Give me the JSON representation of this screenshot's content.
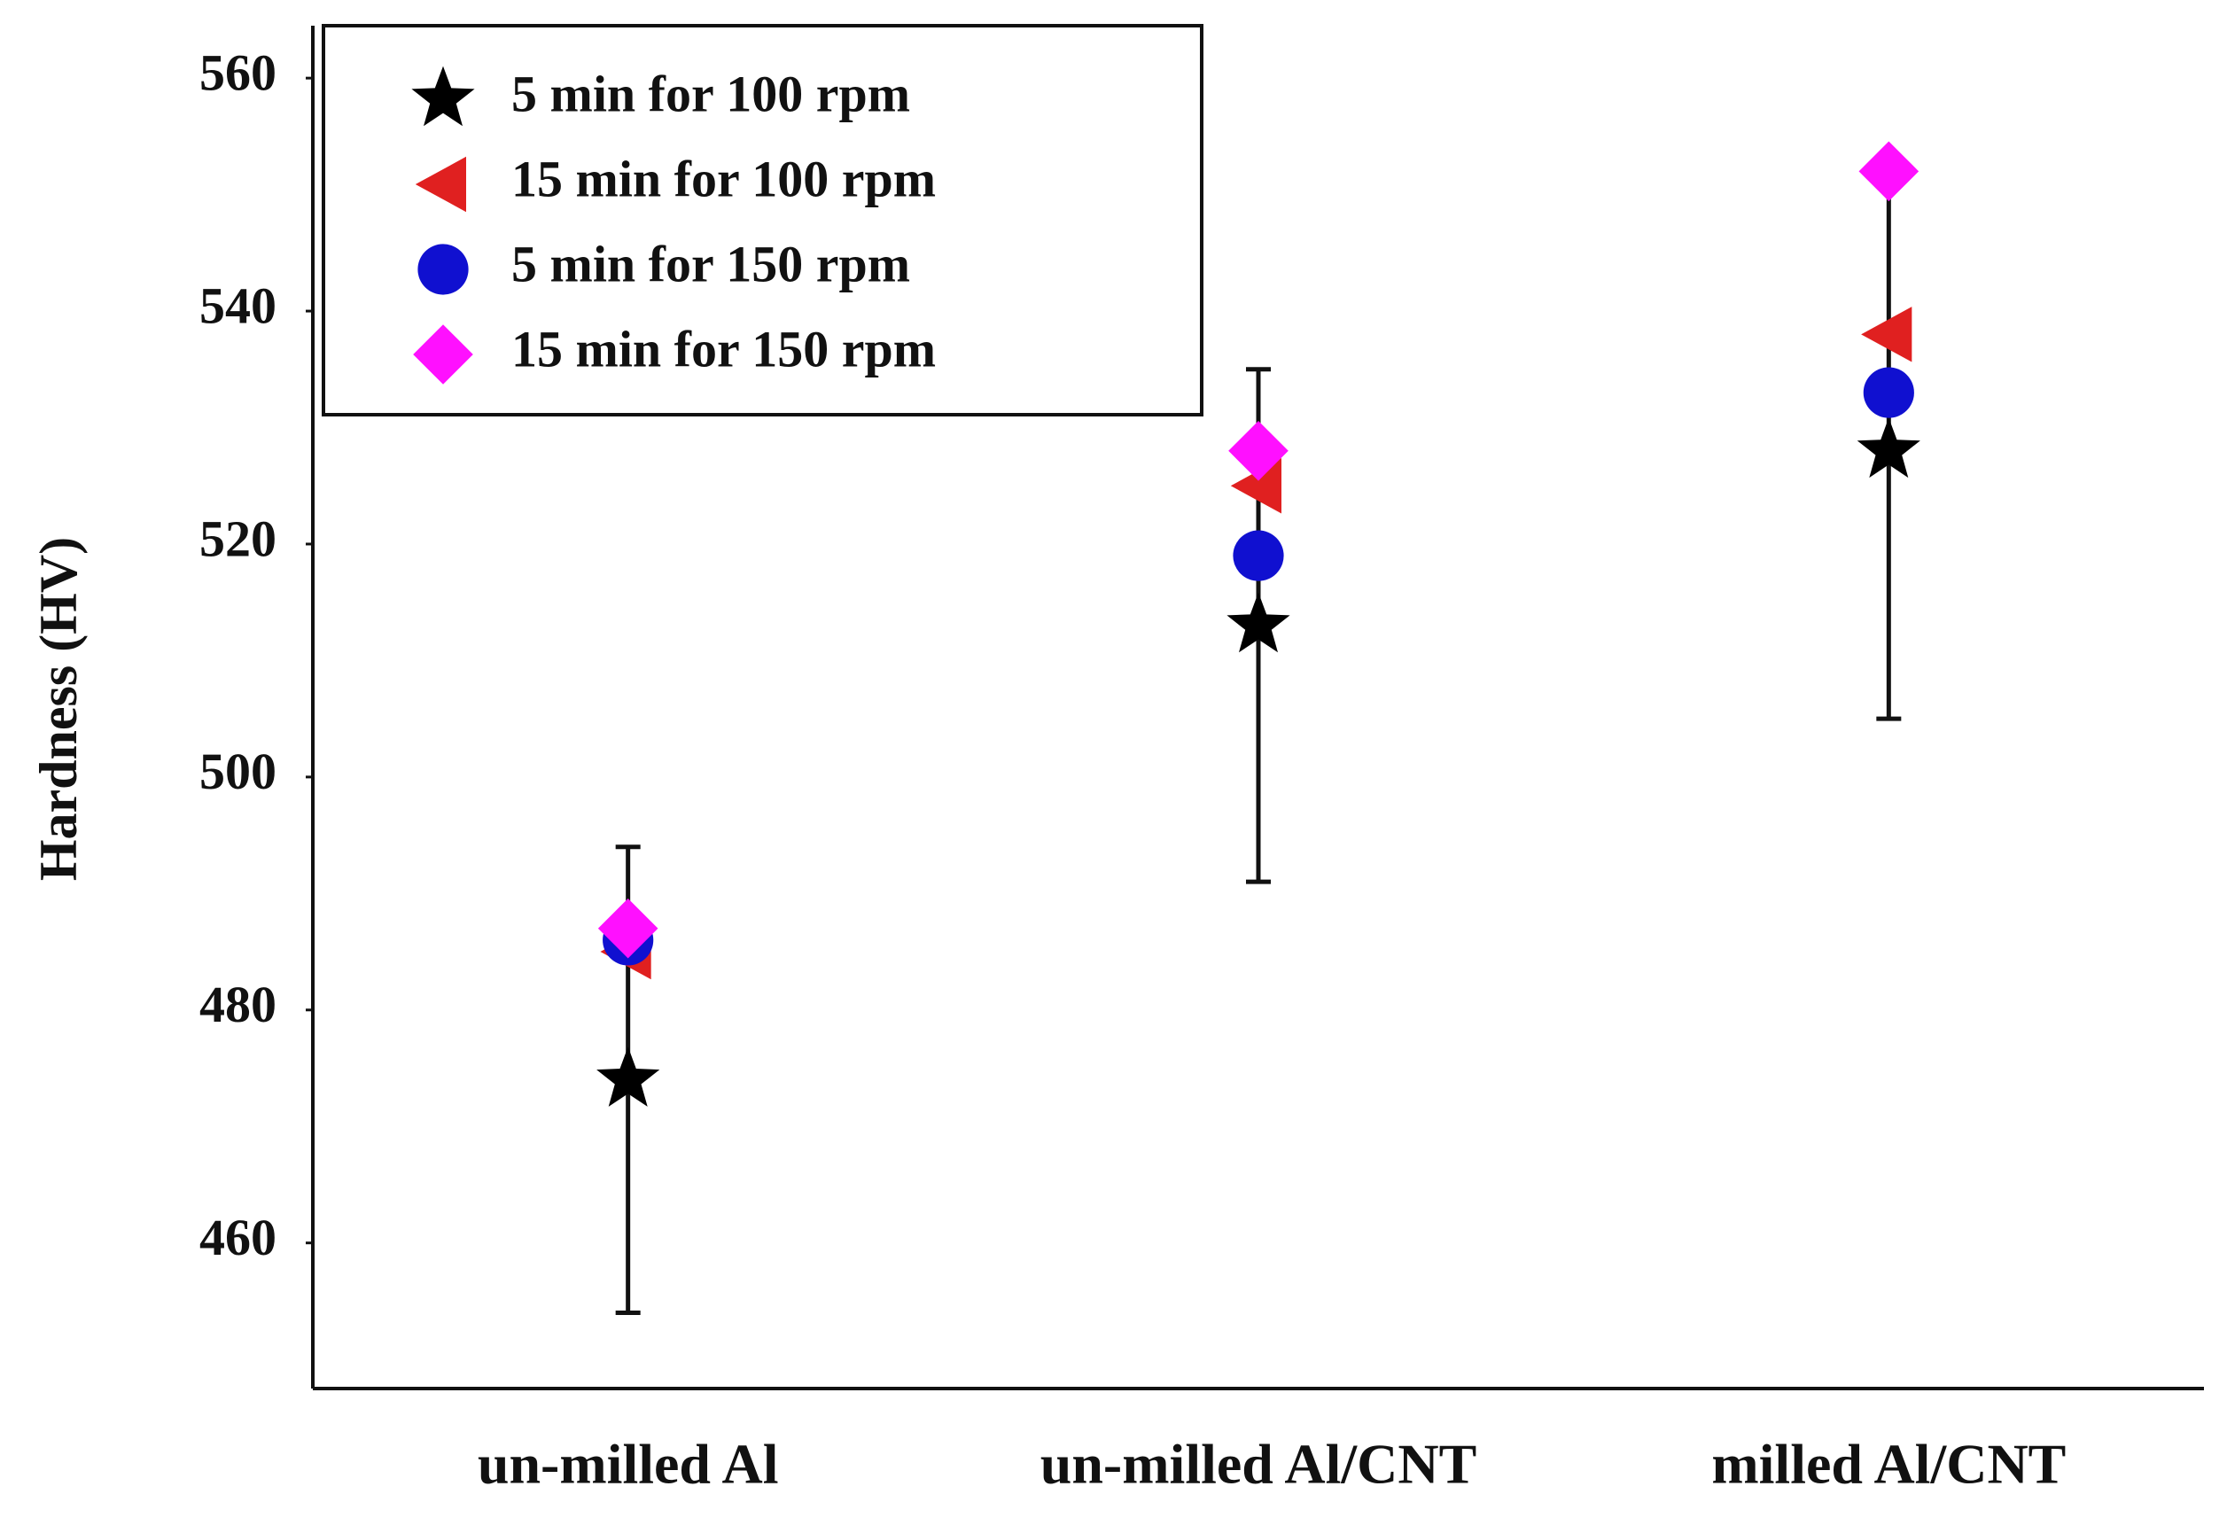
{
  "chart_data": {
    "type": "scatter",
    "y_label": "Hardness (HV)",
    "categories": [
      "un-milled Al",
      "un-milled Al/CNT",
      "milled Al/CNT"
    ],
    "series": [
      {
        "name": "5 min for 100 rpm",
        "color": "#000000",
        "marker": "star",
        "values": [
          474,
          513,
          528
        ],
        "errors": [
          20,
          22,
          23
        ]
      },
      {
        "name": "15 min for 100 rpm",
        "color": "#e02020",
        "marker": "triangle-left",
        "values": [
          485,
          525,
          538
        ]
      },
      {
        "name": "5 min for 150 rpm",
        "color": "#1010d0",
        "marker": "circle",
        "values": [
          486,
          519,
          533
        ]
      },
      {
        "name": "15 min for 150 rpm",
        "color": "#ff10ff",
        "marker": "diamond",
        "values": [
          487,
          528,
          552
        ]
      }
    ],
    "ylim": [
      447.5,
      564.5
    ],
    "yticks": [
      460,
      480,
      500,
      520,
      540,
      560
    ],
    "legend": "upper left"
  }
}
